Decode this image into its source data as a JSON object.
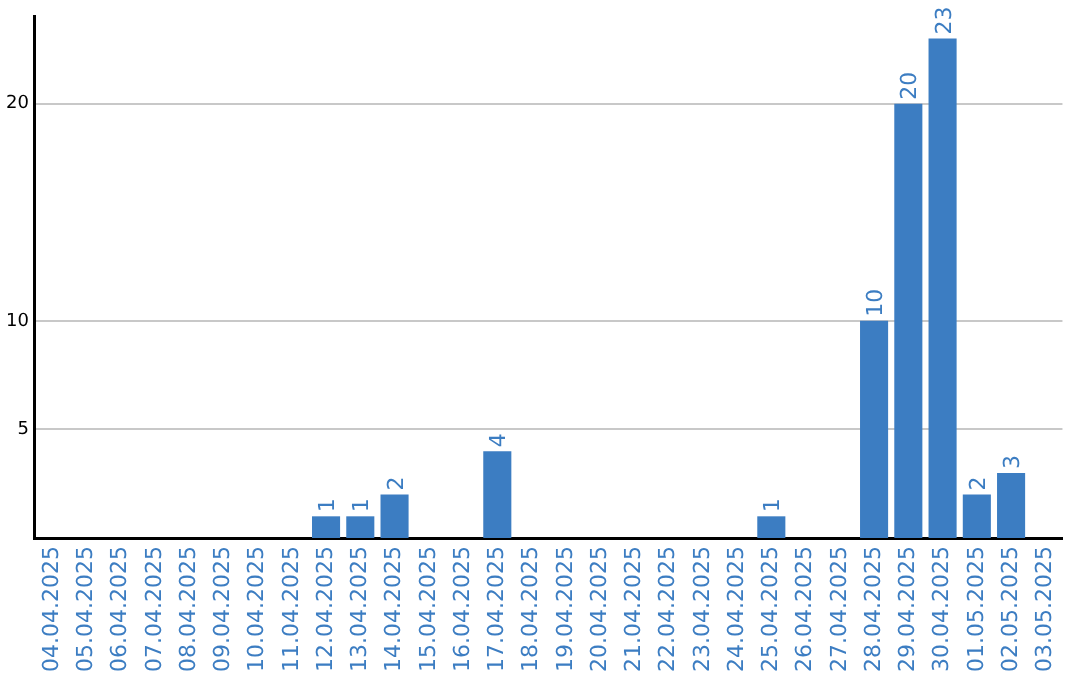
{
  "chart_data": {
    "type": "bar",
    "categories": [
      "04.04.2025",
      "05.04.2025",
      "06.04.2025",
      "07.04.2025",
      "08.04.2025",
      "09.04.2025",
      "10.04.2025",
      "11.04.2025",
      "12.04.2025",
      "13.04.2025",
      "14.04.2025",
      "15.04.2025",
      "16.04.2025",
      "17.04.2025",
      "18.04.2025",
      "19.04.2025",
      "20.04.2025",
      "21.04.2025",
      "22.04.2025",
      "23.04.2025",
      "24.04.2025",
      "25.04.2025",
      "26.04.2025",
      "27.04.2025",
      "28.04.2025",
      "29.04.2025",
      "30.04.2025",
      "01.05.2025",
      "02.05.2025",
      "03.05.2025"
    ],
    "values": [
      0,
      0,
      0,
      0,
      0,
      0,
      0,
      0,
      1,
      1,
      2,
      0,
      0,
      4,
      0,
      0,
      0,
      0,
      0,
      0,
      0,
      1,
      0,
      0,
      10,
      20,
      23,
      2,
      3,
      0
    ],
    "value_labels": [
      null,
      null,
      null,
      null,
      null,
      null,
      null,
      null,
      "1",
      "1",
      "2",
      null,
      null,
      "4",
      null,
      null,
      null,
      null,
      null,
      null,
      null,
      "1",
      null,
      null,
      "10",
      "20",
      "23",
      "2",
      "3",
      null
    ],
    "color": "#3c7dc2",
    "ylim": [
      0,
      24
    ],
    "yticks": [
      5,
      10,
      20
    ],
    "grid": "y",
    "legend": false
  }
}
